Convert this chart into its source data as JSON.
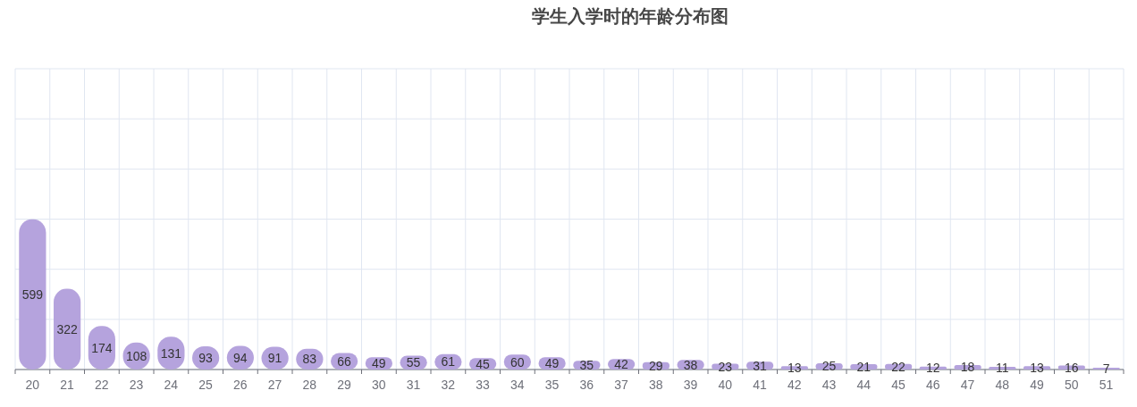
{
  "chart_data": {
    "type": "bar",
    "title": "学生入学时的年龄分布图",
    "categories": [
      "20",
      "21",
      "22",
      "23",
      "24",
      "25",
      "26",
      "27",
      "28",
      "29",
      "30",
      "31",
      "32",
      "33",
      "34",
      "35",
      "36",
      "37",
      "38",
      "39",
      "40",
      "41",
      "42",
      "43",
      "44",
      "45",
      "46",
      "47",
      "48",
      "49",
      "50",
      "51"
    ],
    "values": [
      599,
      322,
      174,
      108,
      131,
      93,
      94,
      91,
      83,
      66,
      49,
      55,
      61,
      45,
      60,
      49,
      35,
      42,
      29,
      38,
      23,
      31,
      13,
      25,
      21,
      22,
      12,
      18,
      11,
      13,
      16,
      7
    ],
    "color": "#b5a3dd",
    "ylim": [
      0,
      1200
    ],
    "yticks": [
      {
        "value": 0,
        "label": null
      },
      {
        "value": 200,
        "label": null
      },
      {
        "value": 400,
        "label": null
      },
      {
        "value": 600,
        "label": null
      },
      {
        "value": 800,
        "label": null
      },
      {
        "value": 1000,
        "label": null
      },
      {
        "value": 1200,
        "label": null
      }
    ],
    "grid": true,
    "data_labels": true,
    "tick_labels": "x"
  }
}
